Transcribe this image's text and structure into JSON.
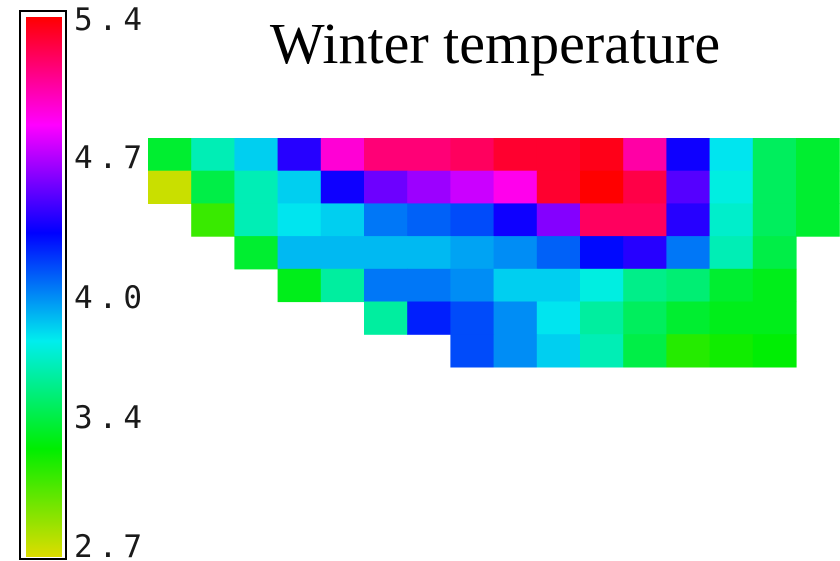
{
  "chart_data": {
    "type": "heatmap",
    "title": "Winter temperature",
    "colorbar": {
      "min": 2.7,
      "max": 5.4,
      "ticks": [
        "5.4",
        "4.7",
        "4.0",
        "3.4",
        "2.7"
      ],
      "tick_values": [
        5.4,
        4.7,
        4.0,
        3.4,
        2.7
      ]
    },
    "grid": {
      "columns": 16,
      "rows": 7,
      "values": [
        [
          3.35,
          3.65,
          3.85,
          4.4,
          4.95,
          5.15,
          5.15,
          5.2,
          5.3,
          5.3,
          5.35,
          5.05,
          4.35,
          3.8,
          3.45,
          3.35
        ],
        [
          2.75,
          3.4,
          3.65,
          3.85,
          4.35,
          4.55,
          4.65,
          4.75,
          4.9,
          5.3,
          5.4,
          5.25,
          4.5,
          3.75,
          3.45,
          3.35
        ],
        [
          null,
          3.1,
          3.65,
          3.8,
          3.85,
          4.05,
          4.1,
          4.15,
          4.35,
          4.6,
          5.2,
          5.2,
          4.4,
          3.7,
          3.45,
          3.35
        ],
        [
          null,
          null,
          3.35,
          3.9,
          3.9,
          3.9,
          3.9,
          3.95,
          4.0,
          4.1,
          4.3,
          4.4,
          4.05,
          3.65,
          3.4,
          null
        ],
        [
          null,
          null,
          null,
          3.3,
          3.6,
          4.05,
          4.05,
          4.0,
          3.85,
          3.85,
          3.75,
          3.55,
          3.5,
          3.35,
          3.3,
          null
        ],
        [
          null,
          null,
          null,
          null,
          null,
          3.6,
          4.25,
          4.15,
          4.0,
          3.8,
          3.6,
          3.45,
          3.35,
          3.3,
          3.3,
          null
        ],
        [
          null,
          null,
          null,
          null,
          null,
          null,
          null,
          4.15,
          4.0,
          3.85,
          3.65,
          3.4,
          3.15,
          3.2,
          3.25,
          null
        ]
      ]
    },
    "palette": [
      "#dddd00",
      "#00ee00",
      "#00eeee",
      "#0000ff",
      "#ff00ff",
      "#ff0000"
    ]
  }
}
